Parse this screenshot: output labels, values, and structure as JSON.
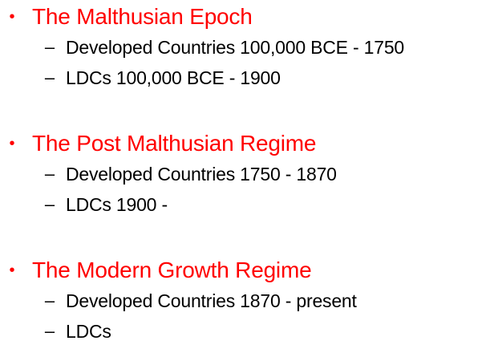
{
  "bullet_glyph": "•",
  "dash_glyph": "–",
  "sections": [
    {
      "heading": "The Malthusian Epoch",
      "items": [
        "Developed Countries 100,000 BCE - 1750",
        "LDCs 100,000 BCE - 1900"
      ]
    },
    {
      "heading": "The Post Malthusian Regime",
      "items": [
        "Developed Countries 1750 - 1870",
        "LDCs 1900 -"
      ]
    },
    {
      "heading": "The Modern Growth Regime",
      "items": [
        "Developed Countries 1870 - present",
        "LDCs"
      ]
    }
  ],
  "colors": {
    "heading": "#ff0000",
    "body": "#000000",
    "background": "#ffffff"
  }
}
